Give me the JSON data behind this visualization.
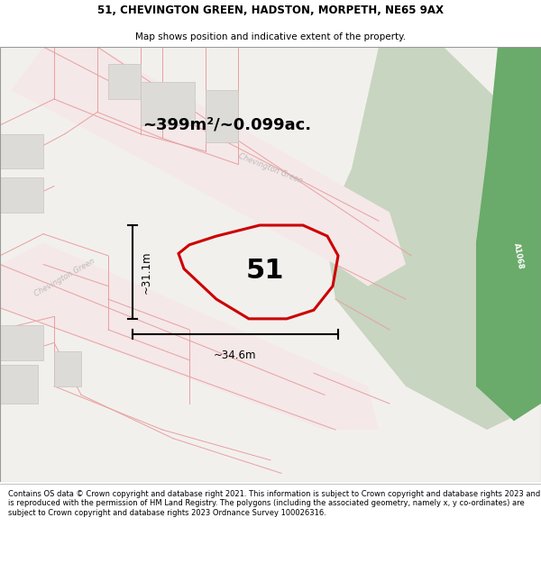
{
  "title_line1": "51, CHEVINGTON GREEN, HADSTON, MORPETH, NE65 9AX",
  "title_line2": "Map shows position and indicative extent of the property.",
  "footer_text": "Contains OS data © Crown copyright and database right 2021. This information is subject to Crown copyright and database rights 2023 and is reproduced with the permission of HM Land Registry. The polygons (including the associated geometry, namely x, y co-ordinates) are subject to Crown copyright and database rights 2023 Ordnance Survey 100026316.",
  "area_label": "~399m²/~0.099ac.",
  "width_label": "~34.6m",
  "height_label": "~31.1m",
  "plot_number": "51",
  "map_bg": "#f2f0ed",
  "road_fill": "#f5e8e8",
  "road_line": "#e8a0a0",
  "plot_outline_color": "#cc0000",
  "plot_fill_color": "none",
  "green_area_color": "#c8d5c0",
  "green_road_color": "#6aaa6a",
  "building_color": "#dddbd8",
  "building_stroke": "#c8c5c0",
  "dim_line_color": "#000000",
  "road_label_color": "#bbbbbb",
  "white": "#ffffff"
}
